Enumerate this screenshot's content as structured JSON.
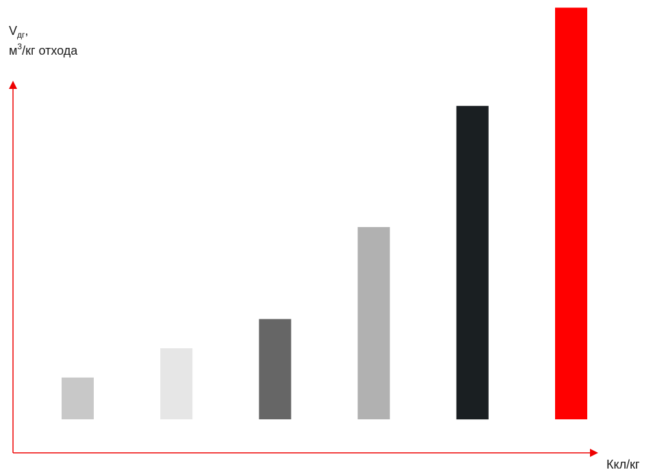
{
  "chart_data": {
    "type": "bar",
    "title": "",
    "ylabel": {
      "main": "V",
      "sub": "дг",
      "suffix": ",",
      "unit_prefix": "м",
      "unit_sup": "3",
      "unit_rest": "/кг отхода"
    },
    "xlabel": "Ккл/кг",
    "grid": false,
    "legend": "none",
    "axis_color": "#ee0000",
    "ylim": [
      0,
      100
    ],
    "categories": [
      "",
      "",
      "",
      "",
      "",
      ""
    ],
    "values": [
      10,
      17,
      24,
      46,
      75,
      98.5
    ],
    "colors": [
      "#c8c8c8",
      "#e6e6e6",
      "#666666",
      "#b1b1b1",
      "#1a1f22",
      "#ff0000"
    ]
  }
}
